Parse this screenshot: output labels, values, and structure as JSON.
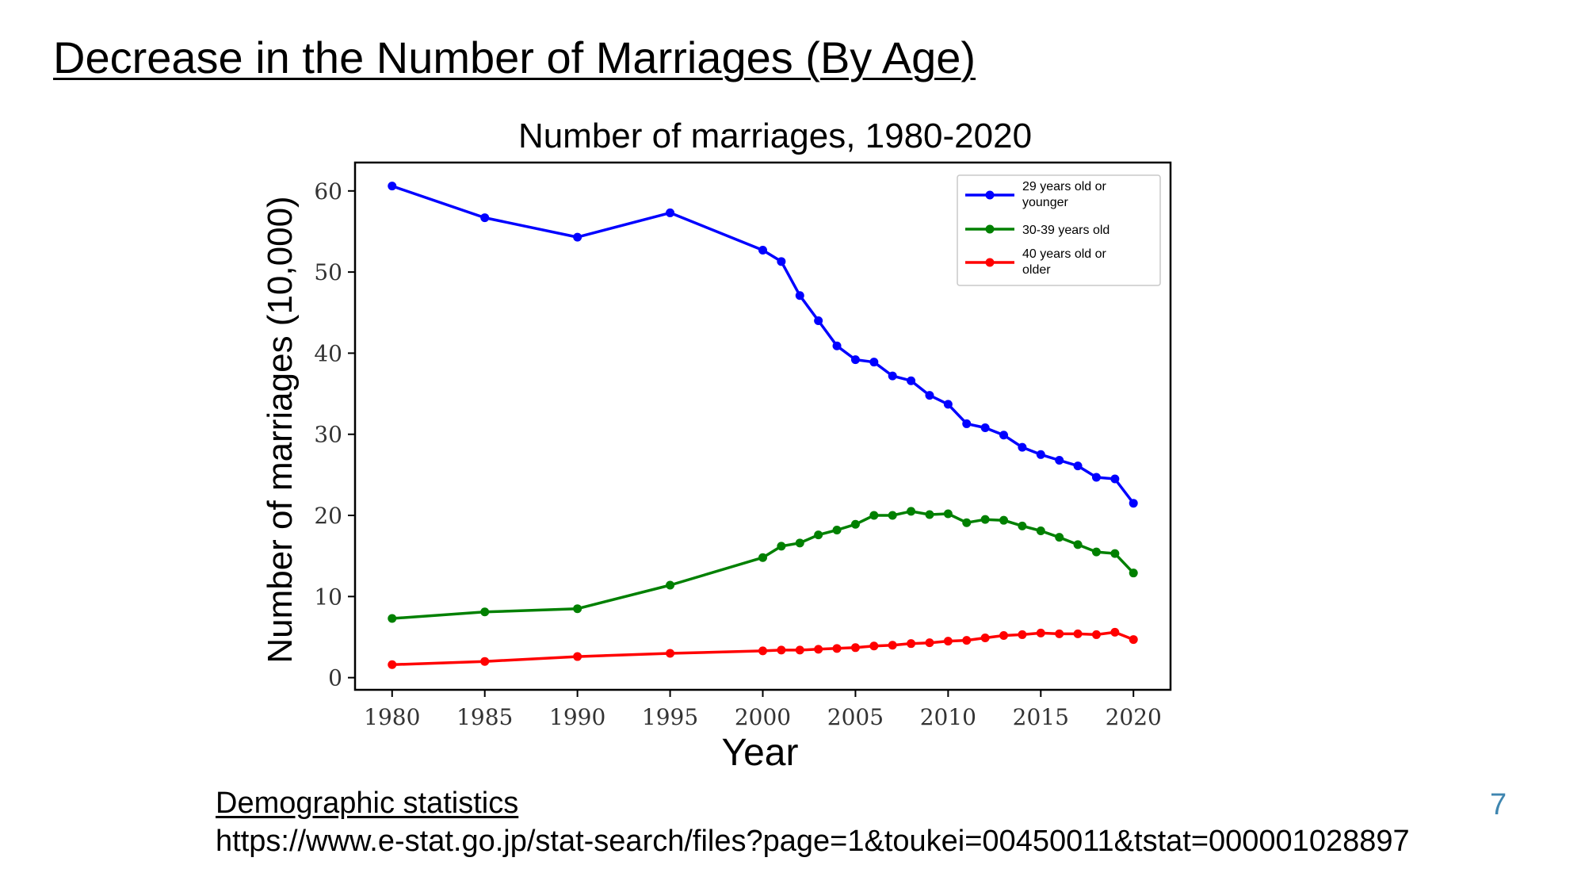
{
  "slide": {
    "title": "Decrease in the Number of Marriages (By Age)",
    "source_label": "Demographic statistics",
    "source_url": "https://www.e-stat.go.jp/stat-search/files?page=1&toukei=00450011&tstat=000001028897",
    "page_number": "7"
  },
  "chart_data": {
    "type": "line",
    "title": "Number of marriages, 1980-2020",
    "xlabel": "Year",
    "ylabel": "Number of marriages (10,000)",
    "xlim": [
      1978,
      2022
    ],
    "ylim": [
      -1.5,
      63.5
    ],
    "xticks": [
      1980,
      1985,
      1990,
      1995,
      2000,
      2005,
      2010,
      2015,
      2020
    ],
    "yticks": [
      0,
      10,
      20,
      30,
      40,
      50,
      60
    ],
    "grid": false,
    "legend": "top-right",
    "x": [
      1980,
      1985,
      1990,
      1995,
      2000,
      2001,
      2002,
      2003,
      2004,
      2005,
      2006,
      2007,
      2008,
      2009,
      2010,
      2011,
      2012,
      2013,
      2014,
      2015,
      2016,
      2017,
      2018,
      2019,
      2020
    ],
    "series": [
      {
        "name": "29 years old or younger",
        "color": "#0000ff",
        "values": [
          60.6,
          56.7,
          54.3,
          57.3,
          52.7,
          51.3,
          47.1,
          44.0,
          40.9,
          39.2,
          38.9,
          37.2,
          36.6,
          34.8,
          33.7,
          31.3,
          30.8,
          29.9,
          28.4,
          27.5,
          26.8,
          26.1,
          24.7,
          24.5,
          21.5
        ]
      },
      {
        "name": "30-39 years old",
        "color": "#008000",
        "values": [
          7.3,
          8.1,
          8.5,
          11.4,
          14.8,
          16.2,
          16.6,
          17.6,
          18.2,
          18.9,
          20.0,
          20.0,
          20.5,
          20.1,
          20.2,
          19.1,
          19.5,
          19.4,
          18.7,
          18.1,
          17.3,
          16.4,
          15.5,
          15.3,
          12.9
        ]
      },
      {
        "name": "40 years old or older",
        "color": "#ff0000",
        "values": [
          1.6,
          2.0,
          2.6,
          3.0,
          3.3,
          3.4,
          3.4,
          3.5,
          3.6,
          3.7,
          3.9,
          4.0,
          4.2,
          4.3,
          4.5,
          4.6,
          4.9,
          5.2,
          5.3,
          5.5,
          5.4,
          5.4,
          5.3,
          5.6,
          4.7
        ]
      }
    ]
  }
}
